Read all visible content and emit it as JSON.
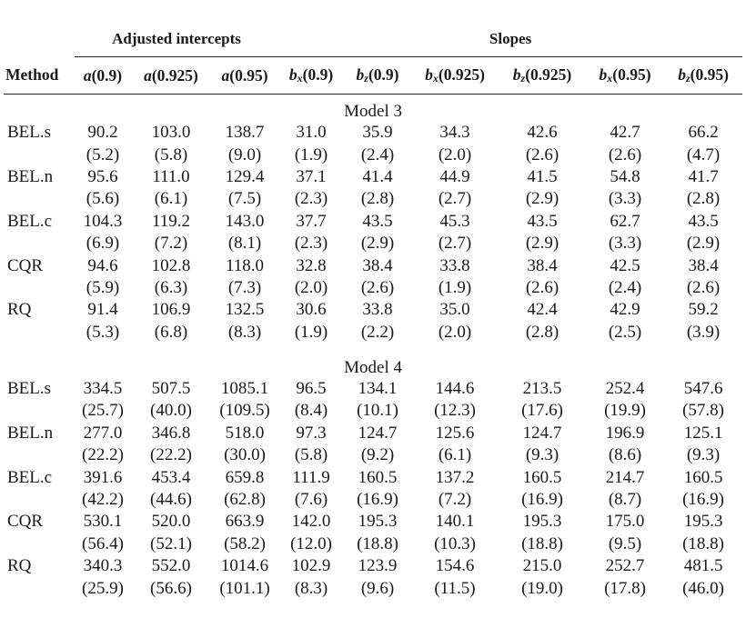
{
  "header": {
    "groups": [
      {
        "label": "Adjusted intercepts"
      },
      {
        "label": "Slopes"
      }
    ],
    "columns": [
      {
        "label": "Method"
      },
      {
        "base": "a",
        "sub": "",
        "arg": "(0.9)"
      },
      {
        "base": "a",
        "sub": "",
        "arg": "(0.925)"
      },
      {
        "base": "a",
        "sub": "",
        "arg": "(0.95)"
      },
      {
        "base": "b",
        "sub": "x",
        "arg": "(0.9)"
      },
      {
        "base": "b",
        "sub": "z",
        "arg": "(0.9)"
      },
      {
        "base": "b",
        "sub": "x",
        "arg": "(0.925)"
      },
      {
        "base": "b",
        "sub": "z",
        "arg": "(0.925)"
      },
      {
        "base": "b",
        "sub": "x",
        "arg": "(0.95)"
      },
      {
        "base": "b",
        "sub": "z",
        "arg": "(0.95)"
      }
    ]
  },
  "sections": [
    {
      "title": "Model 3",
      "rows": [
        {
          "method": "BEL.s",
          "values": [
            "90.2",
            "103.0",
            "138.7",
            "31.0",
            "35.9",
            "34.3",
            "42.6",
            "42.7",
            "66.2"
          ],
          "se": [
            "(5.2)",
            "(5.8)",
            "(9.0)",
            "(1.9)",
            "(2.4)",
            "(2.0)",
            "(2.6)",
            "(2.6)",
            "(4.7)"
          ]
        },
        {
          "method": "BEL.n",
          "values": [
            "95.6",
            "111.0",
            "129.4",
            "37.1",
            "41.4",
            "44.9",
            "41.5",
            "54.8",
            "41.7"
          ],
          "se": [
            "(5.6)",
            "(6.1)",
            "(7.5)",
            "(2.3)",
            "(2.8)",
            "(2.7)",
            "(2.9)",
            "(3.3)",
            "(2.8)"
          ]
        },
        {
          "method": "BEL.c",
          "values": [
            "104.3",
            "119.2",
            "143.0",
            "37.7",
            "43.5",
            "45.3",
            "43.5",
            "62.7",
            "43.5"
          ],
          "se": [
            "(6.9)",
            "(7.2)",
            "(8.1)",
            "(2.3)",
            "(2.9)",
            "(2.7)",
            "(2.9)",
            "(3.3)",
            "(2.9)"
          ]
        },
        {
          "method": "CQR",
          "values": [
            "94.6",
            "102.8",
            "118.0",
            "32.8",
            "38.4",
            "33.8",
            "38.4",
            "42.5",
            "38.4"
          ],
          "se": [
            "(5.9)",
            "(6.3)",
            "(7.3)",
            "(2.0)",
            "(2.6)",
            "(1.9)",
            "(2.6)",
            "(2.4)",
            "(2.6)"
          ]
        },
        {
          "method": "RQ",
          "values": [
            "91.4",
            "106.9",
            "132.5",
            "30.6",
            "33.8",
            "35.0",
            "42.4",
            "42.9",
            "59.2"
          ],
          "se": [
            "(5.3)",
            "(6.8)",
            "(8.3)",
            "(1.9)",
            "(2.2)",
            "(2.0)",
            "(2.8)",
            "(2.5)",
            "(3.9)"
          ]
        }
      ]
    },
    {
      "title": "Model 4",
      "rows": [
        {
          "method": "BEL.s",
          "values": [
            "334.5",
            "507.5",
            "1085.1",
            "96.5",
            "134.1",
            "144.6",
            "213.5",
            "252.4",
            "547.6"
          ],
          "se": [
            "(25.7)",
            "(40.0)",
            "(109.5)",
            "(8.4)",
            "(10.1)",
            "(12.3)",
            "(17.6)",
            "(19.9)",
            "(57.8)"
          ]
        },
        {
          "method": "BEL.n",
          "values": [
            "277.0",
            "346.8",
            "518.0",
            "97.3",
            "124.7",
            "125.6",
            "124.7",
            "196.9",
            "125.1"
          ],
          "se": [
            "(22.2)",
            "(22.2)",
            "(30.0)",
            "(5.8)",
            "(9.2)",
            "(6.1)",
            "(9.3)",
            "(8.6)",
            "(9.3)"
          ]
        },
        {
          "method": "BEL.c",
          "values": [
            "391.6",
            "453.4",
            "659.8",
            "111.9",
            "160.5",
            "137.2",
            "160.5",
            "214.7",
            "160.5"
          ],
          "se": [
            "(42.2)",
            "(44.6)",
            "(62.8)",
            "(7.6)",
            "(16.9)",
            "(7.2)",
            "(16.9)",
            "(8.7)",
            "(16.9)"
          ]
        },
        {
          "method": "CQR",
          "values": [
            "530.1",
            "520.0",
            "663.9",
            "142.0",
            "195.3",
            "140.1",
            "195.3",
            "175.0",
            "195.3"
          ],
          "se": [
            "(56.4)",
            "(52.1)",
            "(58.2)",
            "(12.0)",
            "(18.8)",
            "(10.3)",
            "(18.8)",
            "(9.5)",
            "(18.8)"
          ]
        },
        {
          "method": "RQ",
          "values": [
            "340.3",
            "552.0",
            "1014.6",
            "102.9",
            "123.9",
            "154.6",
            "215.0",
            "252.7",
            "481.5"
          ],
          "se": [
            "(25.9)",
            "(56.6)",
            "(101.1)",
            "(8.3)",
            "(9.6)",
            "(11.5)",
            "(19.0)",
            "(17.8)",
            "(46.0)"
          ]
        }
      ]
    }
  ]
}
